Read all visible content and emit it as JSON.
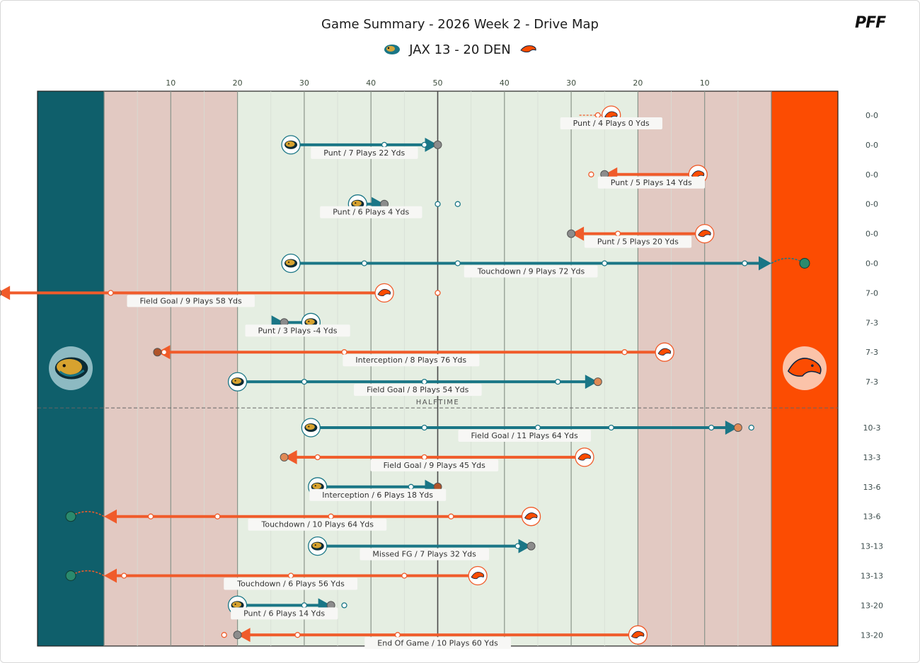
{
  "header": {
    "title": "Game Summary - 2026 Week 2 - Drive Map",
    "score_line": "JAX 13 - 20 DEN",
    "brand": "PFF"
  },
  "colors": {
    "jax": "#1a7686",
    "jax_end": "#0f5f6b",
    "den": "#f05b2a",
    "den_end": "#fc4c02",
    "home_fill": "#e2c9c2",
    "mid_fill": "#e5eee2",
    "end_score": "#2a8a6d",
    "end_punt": "#8c8c8c",
    "end_fg": "#e08a55",
    "end_int": "#b0542a"
  },
  "chart_data": {
    "type": "drive_map",
    "title": "Game Summary - 2026 Week 2 - Drive Map",
    "yard_ticks": [
      "10",
      "20",
      "30",
      "40",
      "50",
      "40",
      "30",
      "20",
      "10"
    ],
    "halftime_label": "HALFTIME",
    "drives": [
      {
        "team": "DEN",
        "start": 76,
        "end": 76,
        "plays": [
          74,
          76
        ],
        "result": "Punt",
        "label": "Punt / 4 Plays 0 Yds",
        "score": "0-0"
      },
      {
        "team": "JAX",
        "start": 28,
        "end": 50,
        "plays": [
          42,
          48
        ],
        "result": "Punt",
        "label": "Punt / 7 Plays 22 Yds",
        "score": "0-0"
      },
      {
        "team": "DEN",
        "start": 89,
        "end": 75,
        "plays": [
          73
        ],
        "result": "Punt",
        "label": "Punt / 5 Plays 14 Yds",
        "score": "0-0"
      },
      {
        "team": "JAX",
        "start": 38,
        "end": 42,
        "plays": [
          50,
          53
        ],
        "result": "Punt",
        "label": "Punt / 6 Plays 4 Yds",
        "score": "0-0"
      },
      {
        "team": "DEN",
        "start": 90,
        "end": 70,
        "plays": [
          77
        ],
        "result": "Punt",
        "label": "Punt / 5 Plays 20 Yds",
        "score": "0-0"
      },
      {
        "team": "JAX",
        "start": 28,
        "end": 100,
        "plays": [
          39,
          53,
          75,
          96
        ],
        "result": "Touchdown",
        "label": "Touchdown / 9 Plays 72 Yds",
        "score": "0-0"
      },
      {
        "team": "DEN",
        "start": 42,
        "end": -16,
        "plays": [
          50,
          1
        ],
        "result": "Field Goal",
        "label": "Field Goal / 9 Plays 58 Yds",
        "score": "7-0"
      },
      {
        "team": "JAX",
        "start": 31,
        "end": 27,
        "plays": [],
        "result": "Punt",
        "label": "Punt / 3 Plays -4 Yds",
        "score": "7-3"
      },
      {
        "team": "DEN",
        "start": 84,
        "end": 8,
        "plays": [
          78,
          36,
          9
        ],
        "result": "Interception",
        "label": "Interception / 8 Plays 76 Yds",
        "score": "7-3"
      },
      {
        "team": "JAX",
        "start": 20,
        "end": 74,
        "plays": [
          30,
          48,
          68
        ],
        "result": "Field Goal",
        "label": "Field Goal / 8 Plays 54 Yds",
        "score": "7-3"
      },
      {
        "team": "JAX",
        "start": 31,
        "end": 95,
        "plays": [
          48,
          65,
          76,
          91,
          97
        ],
        "result": "Field Goal",
        "label": "Field Goal / 11 Plays 64 Yds",
        "score": "10-3"
      },
      {
        "team": "DEN",
        "start": 72,
        "end": 27,
        "plays": [
          48,
          32
        ],
        "result": "Field Goal",
        "label": "Field Goal / 9 Plays 45 Yds",
        "score": "13-3"
      },
      {
        "team": "JAX",
        "start": 32,
        "end": 50,
        "plays": [
          46
        ],
        "result": "Interception",
        "label": "Interception / 6 Plays 18 Yds",
        "score": "13-6"
      },
      {
        "team": "DEN",
        "start": 64,
        "end": 0,
        "plays": [
          52,
          34,
          17,
          7
        ],
        "result": "Touchdown",
        "label": "Touchdown / 10 Plays 64 Yds",
        "score": "13-6"
      },
      {
        "team": "JAX",
        "start": 32,
        "end": 64,
        "plays": [
          62
        ],
        "result": "Missed FG",
        "label": "Missed FG / 7 Plays 32 Yds",
        "score": "13-13"
      },
      {
        "team": "DEN",
        "start": 56,
        "end": 0,
        "plays": [
          45,
          28,
          3
        ],
        "result": "Touchdown",
        "label": "Touchdown / 6 Plays 56 Yds",
        "score": "13-13"
      },
      {
        "team": "JAX",
        "start": 20,
        "end": 34,
        "plays": [
          30,
          36
        ],
        "result": "Punt",
        "label": "Punt / 6 Plays 14 Yds",
        "score": "13-20"
      },
      {
        "team": "DEN",
        "start": 80,
        "end": 20,
        "plays": [
          44,
          29,
          18
        ],
        "result": "End Of Game",
        "label": "End Of Game / 10 Plays 60 Yds",
        "score": "13-20"
      }
    ]
  }
}
